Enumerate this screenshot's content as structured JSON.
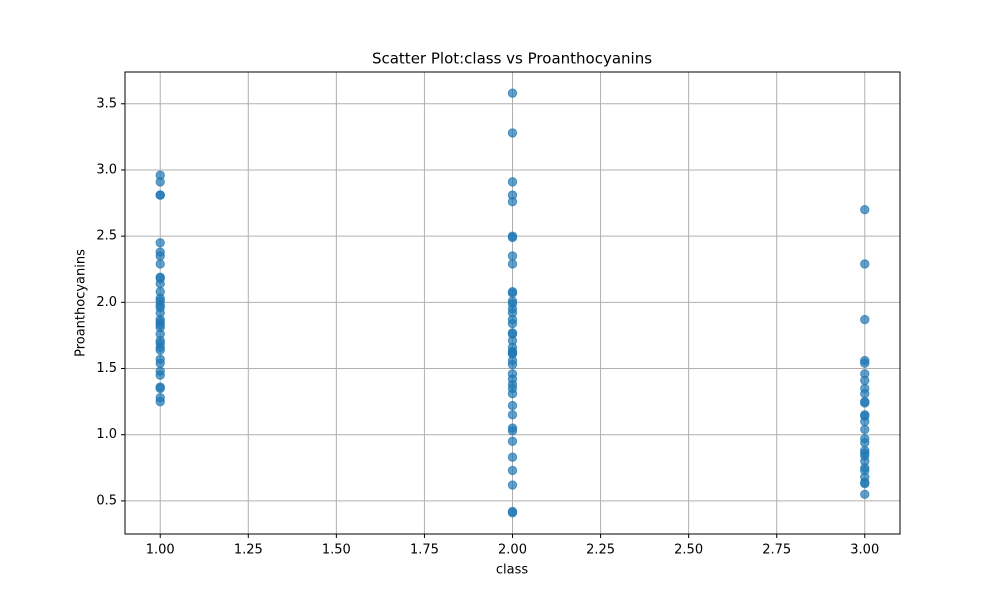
{
  "chart_data": {
    "type": "scatter",
    "title": "Scatter Plot:class vs Proanthocyanins",
    "x_label": "class",
    "y_label": "Proanthocyanins",
    "color": "#1f77b4",
    "grid": true,
    "x": [
      1,
      1,
      1,
      1,
      1,
      1,
      1,
      1,
      1,
      1,
      1,
      1,
      1,
      1,
      1,
      1,
      1,
      1,
      1,
      1,
      1,
      1,
      1,
      1,
      1,
      1,
      1,
      1,
      1,
      1,
      1,
      1,
      1,
      1,
      2,
      2,
      2,
      2,
      2,
      2,
      2,
      2,
      2,
      2,
      2,
      2,
      2,
      2,
      2,
      2,
      2,
      2,
      2,
      2,
      2,
      2,
      2,
      2,
      2,
      2,
      2,
      2,
      2,
      2,
      2,
      2,
      2,
      2,
      2,
      2,
      2,
      2,
      2,
      2,
      2,
      3,
      3,
      3,
      3,
      3,
      3,
      3,
      3,
      3,
      3,
      3,
      3,
      3,
      3,
      3,
      3,
      3,
      3,
      3,
      3,
      3,
      3,
      3,
      3,
      3,
      3,
      3
    ],
    "values": [
      2.96,
      2.91,
      2.81,
      2.81,
      2.45,
      2.38,
      2.35,
      2.29,
      2.19,
      2.18,
      2.14,
      2.08,
      2.03,
      2.01,
      1.98,
      1.96,
      1.92,
      1.87,
      1.85,
      1.83,
      1.81,
      1.76,
      1.71,
      1.69,
      1.66,
      1.64,
      1.57,
      1.54,
      1.48,
      1.45,
      1.36,
      1.35,
      1.28,
      1.25,
      3.58,
      3.28,
      2.91,
      2.81,
      2.76,
      2.5,
      2.49,
      2.35,
      2.29,
      2.08,
      2.07,
      2.01,
      1.99,
      1.95,
      1.92,
      1.87,
      1.84,
      1.77,
      1.76,
      1.71,
      1.66,
      1.63,
      1.62,
      1.61,
      1.56,
      1.53,
      1.46,
      1.42,
      1.38,
      1.35,
      1.31,
      1.22,
      1.15,
      1.05,
      1.03,
      0.95,
      0.83,
      0.73,
      0.62,
      0.42,
      0.41,
      2.7,
      2.29,
      1.87,
      1.56,
      1.54,
      1.46,
      1.41,
      1.35,
      1.31,
      1.25,
      1.24,
      1.15,
      1.14,
      1.1,
      1.04,
      0.97,
      0.94,
      0.88,
      0.86,
      0.84,
      0.8,
      0.75,
      0.73,
      0.68,
      0.64,
      0.63,
      0.55
    ],
    "xlim": [
      0.9,
      3.1
    ],
    "xticks": [
      {
        "value": 1,
        "label": "1.00"
      },
      {
        "value": 1.25,
        "label": "1.25"
      },
      {
        "value": 1.5,
        "label": "1.50"
      },
      {
        "value": 1.75,
        "label": "1.75"
      },
      {
        "value": 2,
        "label": "2.00"
      },
      {
        "value": 2.25,
        "label": "2.25"
      },
      {
        "value": 2.5,
        "label": "2.50"
      },
      {
        "value": 2.75,
        "label": "2.75"
      },
      {
        "value": 3,
        "label": "3.00"
      }
    ],
    "ylim": [
      0.25,
      3.74
    ],
    "yticks": [
      0.5,
      {
        "value": 1,
        "label": "1.0"
      },
      1.5,
      {
        "value": 2,
        "label": "2.0"
      },
      2.5,
      {
        "value": 3,
        "label": "3.0"
      },
      3.5
    ]
  }
}
